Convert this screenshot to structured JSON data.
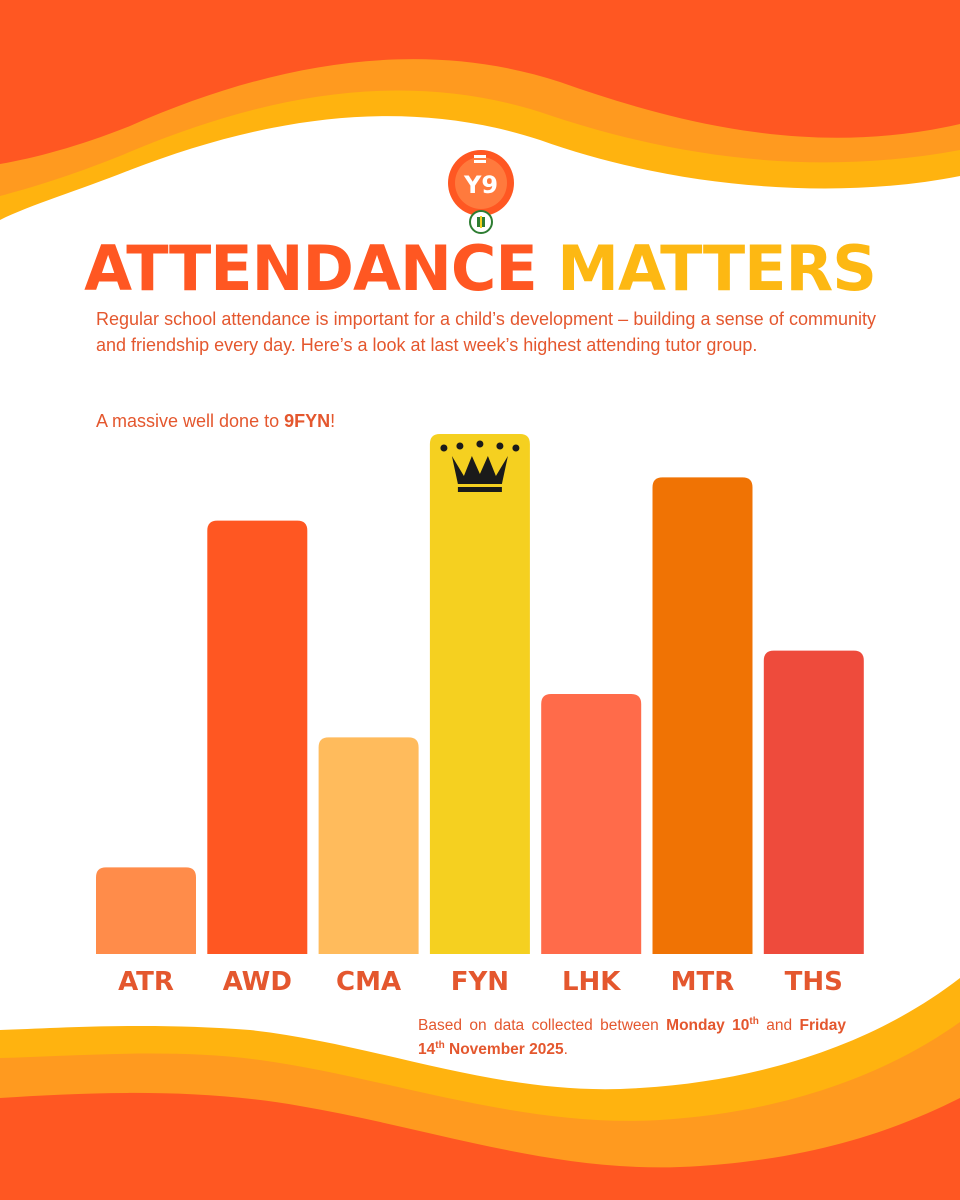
{
  "logo": {
    "text": "Y9",
    "ring_color": "#ff5722",
    "badge_color": "#2e7d32"
  },
  "title": {
    "part1": "ATTENDANCE",
    "part2": "MATTERS"
  },
  "intro": "Regular school attendance is important for a child’s development – building a sense of community and friendship every day. Here’s a look at last week’s highest attending tutor group.",
  "shoutout": {
    "prefix": "A massive well done to ",
    "winner": "9FYN",
    "suffix": "!"
  },
  "chart_data": {
    "type": "bar",
    "title": "",
    "xlabel": "",
    "ylabel": "",
    "categories": [
      "ATR",
      "AWD",
      "CMA",
      "FYN",
      "LHK",
      "MTR",
      "THS"
    ],
    "values": [
      1,
      5,
      2.5,
      6,
      3,
      5.5,
      3.5
    ],
    "ylim": [
      0,
      6
    ],
    "value_axis_shown": false,
    "colors": [
      "#ff8c4a",
      "#ff5722",
      "#ffbb5c",
      "#f5d020",
      "#ff6b4a",
      "#f07304",
      "#ee4b3c"
    ],
    "highlight": {
      "category": "FYN",
      "marker": "crown-icon"
    },
    "grid": false,
    "legend": "none"
  },
  "footnote": {
    "text1": "Based on data collected between ",
    "day1": "Monday 10",
    "sup1": "th",
    "text2": " and ",
    "day2": "Friday 14",
    "sup2": "th",
    "month": " November 2025",
    "end": "."
  },
  "theme": {
    "orange": "#ff5722",
    "amber": "#fdb813",
    "wave_dark": "#ff5722",
    "wave_mid": "#ff9a1f",
    "wave_light": "#ffb30f"
  }
}
